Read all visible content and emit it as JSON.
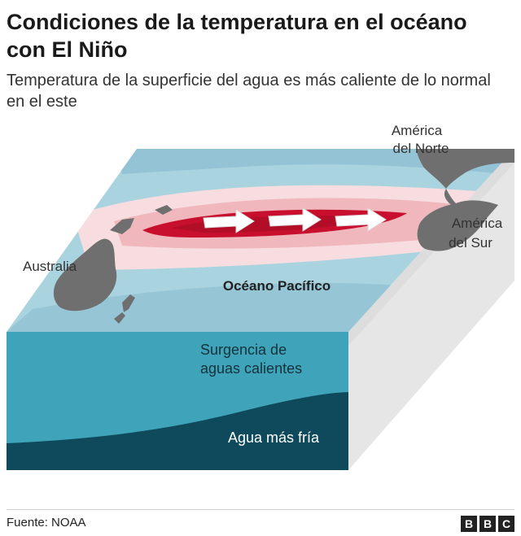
{
  "header": {
    "title": "Condiciones de la temperatura en el océano con El Niño",
    "subtitle": "Temperatura de la superficie del agua es más caliente de lo normal en el este"
  },
  "diagram": {
    "labels": {
      "north_america_1": "América",
      "north_america_2": "del Norte",
      "south_america_1": "América",
      "south_america_2": "del Sur",
      "australia": "Australia",
      "ocean": "Océano Pacífico",
      "warm_upwelling_1": "Surgencia de",
      "warm_upwelling_2": "aguas calientes",
      "cold_water": "Agua más fría"
    },
    "colors": {
      "surface_blue": "#a9d3de",
      "surface_deep_blue": "#8fbfd3",
      "warm_pink": "#f4c9cc",
      "hot_red": "#c8102e",
      "land": "#6f6f6f",
      "front_upper": "#3fa3b9",
      "front_lower": "#0e4a5c",
      "side_grey": "#e6e6e6"
    }
  },
  "footer": {
    "source": "Fuente: NOAA",
    "logo": [
      "B",
      "B",
      "C"
    ]
  }
}
